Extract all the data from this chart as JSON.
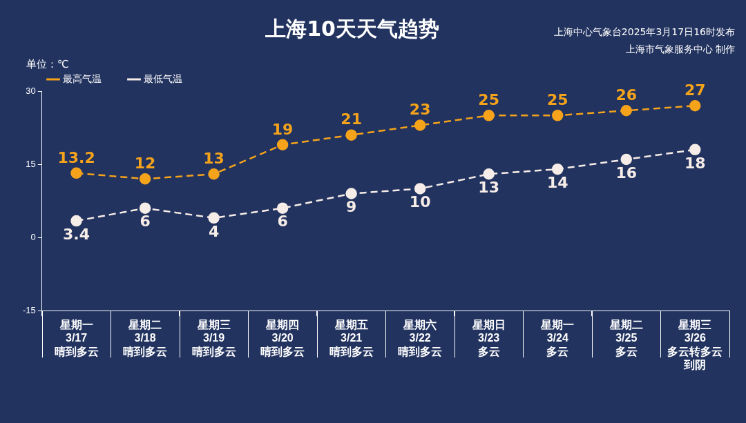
{
  "chart_data": {
    "type": "line",
    "title": "上海10天天气趋势",
    "ylabel": "单位：℃",
    "annotations": [
      "上海中心气象台2025年3月17日16时发布",
      "上海市气象服务中心 制作"
    ],
    "categories": [
      "星期一\n3/17\n晴到多云",
      "星期二\n3/18\n晴到多云",
      "星期三\n3/19\n晴到多云",
      "星期四\n3/20\n晴到多云",
      "星期五\n3/21\n晴到多云",
      "星期六\n3/22\n晴到多云",
      "星期日\n3/23\n多云",
      "星期一\n3/24\n多云",
      "星期二\n3/25\n多云",
      "星期三\n3/26\n多云转多云到阴"
    ],
    "series": [
      {
        "name": "最高气温",
        "color": "#f5a31b",
        "values": [
          13.2,
          12,
          13,
          19,
          21,
          23,
          25,
          25,
          26,
          27
        ]
      },
      {
        "name": "最低气温",
        "color": "#f7ede8",
        "values": [
          3.4,
          6,
          4,
          6,
          9,
          10,
          13,
          14,
          16,
          18
        ]
      }
    ],
    "ylim": [
      -15,
      30
    ],
    "yticks": [
      -15,
      0,
      15,
      30
    ],
    "grid": false,
    "legend": "top left",
    "marker": "circle",
    "line_style": "dashed",
    "data_labels": true
  }
}
